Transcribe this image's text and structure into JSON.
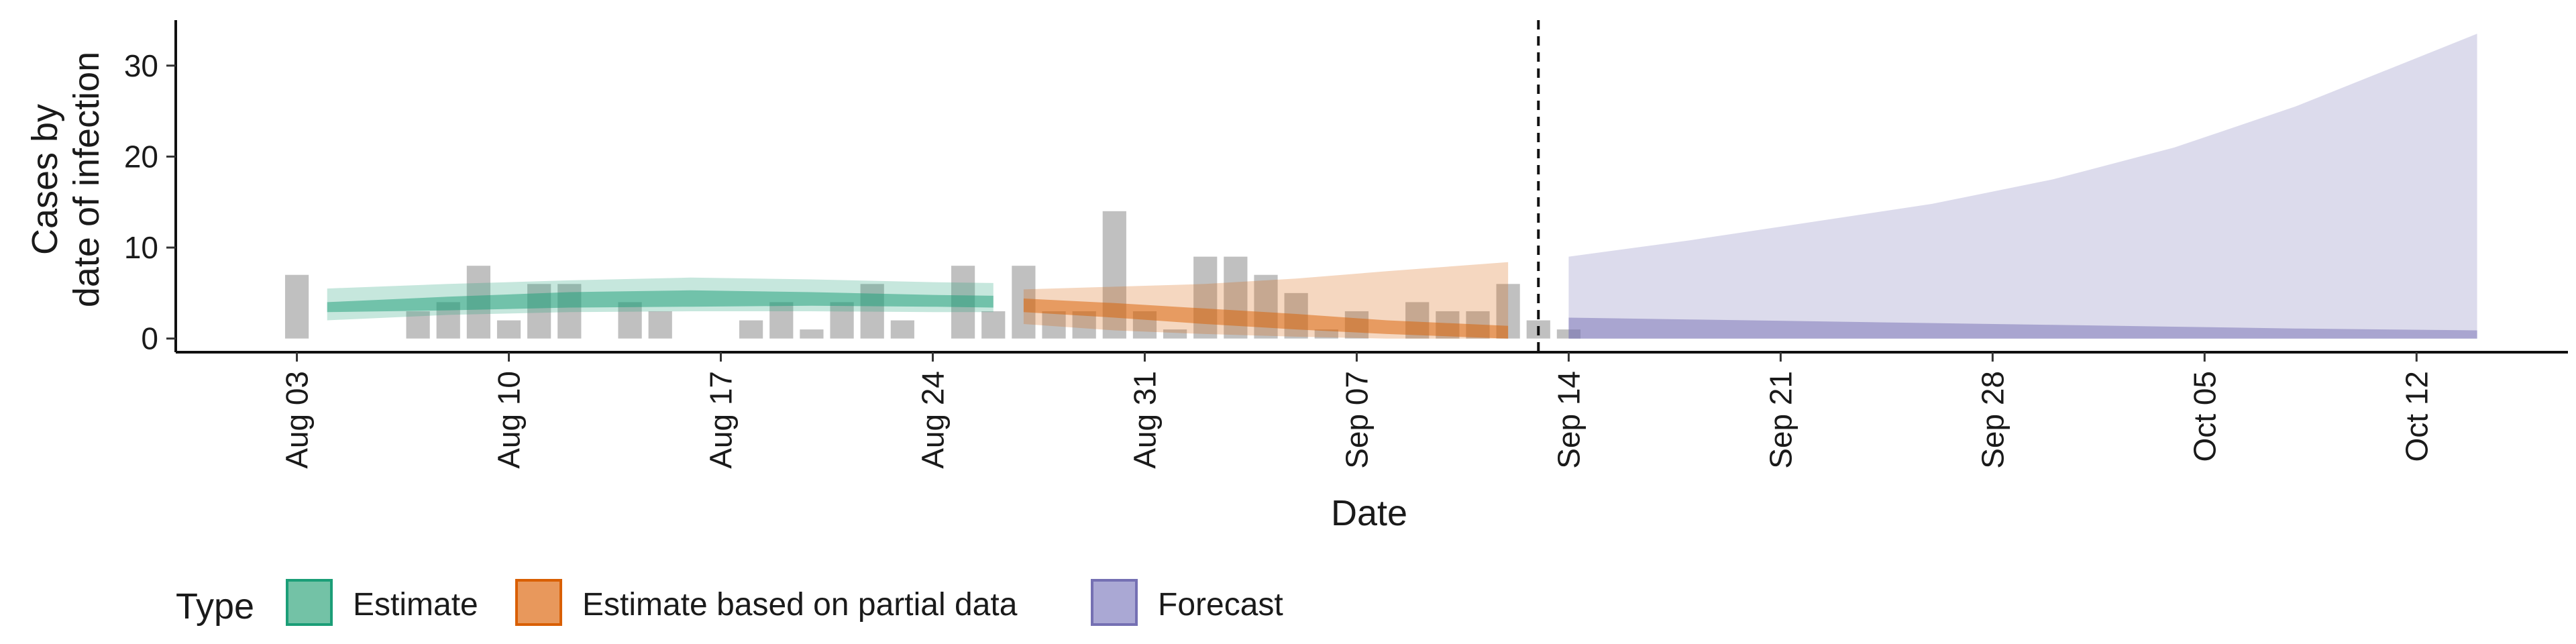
{
  "chart_data": {
    "type": "bar",
    "xlabel": "Date",
    "ylabel": [
      "Cases by",
      "date of infection"
    ],
    "x_range": [
      "2020-07-30",
      "2020-10-17"
    ],
    "ylim": [
      -1.5,
      35
    ],
    "y_ticks": [
      0,
      10,
      20,
      30
    ],
    "x_ticks": [
      {
        "date": "2020-08-03",
        "label": "Aug 03"
      },
      {
        "date": "2020-08-10",
        "label": "Aug 10"
      },
      {
        "date": "2020-08-17",
        "label": "Aug 17"
      },
      {
        "date": "2020-08-24",
        "label": "Aug 24"
      },
      {
        "date": "2020-08-31",
        "label": "Aug 31"
      },
      {
        "date": "2020-09-07",
        "label": "Sep 07"
      },
      {
        "date": "2020-09-14",
        "label": "Sep 14"
      },
      {
        "date": "2020-09-21",
        "label": "Sep 21"
      },
      {
        "date": "2020-09-28",
        "label": "Sep 28"
      },
      {
        "date": "2020-10-05",
        "label": "Oct 05"
      },
      {
        "date": "2020-10-12",
        "label": "Oct 12"
      }
    ],
    "forecast_start": "2020-09-13",
    "observed_cases": {
      "start": "2020-08-03",
      "values": [
        7,
        0,
        0,
        0,
        3,
        4,
        8,
        2,
        6,
        6,
        0,
        4,
        3,
        0,
        0,
        2,
        4,
        1,
        4,
        6,
        2,
        0,
        8,
        3,
        8,
        3,
        3,
        14,
        3,
        1,
        9,
        9,
        7,
        5,
        1,
        3,
        0,
        4,
        3,
        3,
        6,
        2,
        1
      ]
    },
    "series": [
      {
        "name": "Estimate",
        "color": "#1b9e77",
        "x": [
          "2020-08-04",
          "2020-08-08",
          "2020-08-12",
          "2020-08-16",
          "2020-08-20",
          "2020-08-24",
          "2020-08-26"
        ],
        "median_low": [
          2.9,
          3.1,
          3.4,
          3.5,
          3.6,
          3.5,
          3.4
        ],
        "median_high": [
          4.0,
          4.6,
          5.1,
          5.3,
          5.1,
          4.8,
          4.7
        ],
        "ci_low": [
          2.0,
          2.6,
          2.9,
          3.0,
          3.0,
          2.9,
          2.9
        ],
        "ci_high": [
          5.5,
          6.0,
          6.4,
          6.7,
          6.5,
          6.2,
          6.1
        ]
      },
      {
        "name": "Estimate based on partial data",
        "color": "#d95f02",
        "x": [
          "2020-08-27",
          "2020-08-30",
          "2020-09-02",
          "2020-09-05",
          "2020-09-08",
          "2020-09-12"
        ],
        "median_low": [
          2.9,
          2.3,
          1.6,
          1.0,
          0.5,
          0.0
        ],
        "median_high": [
          4.4,
          3.9,
          3.3,
          2.7,
          2.0,
          1.4
        ],
        "ci_low": [
          1.6,
          0.9,
          0.5,
          0.2,
          0.0,
          0.0
        ],
        "ci_high": [
          5.4,
          5.7,
          6.0,
          6.6,
          7.4,
          8.4
        ]
      },
      {
        "name": "Forecast",
        "color": "#7570b3",
        "x": [
          "2020-09-14",
          "2020-09-18",
          "2020-09-22",
          "2020-09-26",
          "2020-09-30",
          "2020-10-04",
          "2020-10-08",
          "2020-10-11",
          "2020-10-14"
        ],
        "median_low": [
          0,
          0,
          0,
          0,
          0,
          0,
          0,
          0,
          0
        ],
        "median_high": [
          2.3,
          2.1,
          1.9,
          1.7,
          1.5,
          1.3,
          1.1,
          1.0,
          0.9
        ],
        "ci_low": [
          0,
          0,
          0,
          0,
          0,
          0,
          0,
          0,
          0
        ],
        "ci_high": [
          9,
          10.8,
          12.8,
          14.8,
          17.5,
          21,
          25.5,
          29.5,
          33.5
        ]
      }
    ],
    "legend": {
      "title": "Type",
      "position": "bottom-left",
      "items": [
        {
          "label": "Estimate",
          "fill": "#73c2a6",
          "stroke": "#1b9e77"
        },
        {
          "label": "Estimate based on partial data",
          "fill": "#e8985c",
          "stroke": "#d95f02"
        },
        {
          "label": "Forecast",
          "fill": "#aaa8d4",
          "stroke": "#7570b3"
        }
      ]
    },
    "bar_color": "#bdbdbd",
    "grid": false
  }
}
